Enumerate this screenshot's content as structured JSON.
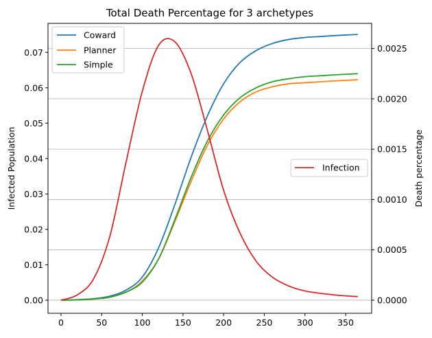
{
  "chart_data": {
    "type": "line",
    "title": "Total Death Percentage for 3 archetypes",
    "xlabel": "",
    "ylabel_left": "Infected Population",
    "ylabel_right": "Death percentage",
    "xlim": [
      -16,
      382
    ],
    "ylim_left": [
      -0.0037,
      0.0782
    ],
    "ylim_right": [
      -0.00013,
      0.00275
    ],
    "x_ticks": [
      0,
      50,
      100,
      150,
      200,
      250,
      300,
      350
    ],
    "y_left_ticks": [
      0.0,
      0.01,
      0.02,
      0.03,
      0.04,
      0.05,
      0.06,
      0.07
    ],
    "y_left_tick_labels": [
      "0.00",
      "0.01",
      "0.02",
      "0.03",
      "0.04",
      "0.05",
      "0.06",
      "0.07"
    ],
    "y_right_ticks": [
      0.0,
      0.0005,
      0.001,
      0.0015,
      0.002,
      0.0025
    ],
    "y_right_tick_labels": [
      "0.0000",
      "0.0005",
      "0.0010",
      "0.0015",
      "0.0020",
      "0.0025"
    ],
    "grid": "horizontal lines at right-axis ticks",
    "legend_left": {
      "placement": "top-left",
      "entries": [
        "Coward",
        "Planner",
        "Simple"
      ]
    },
    "legend_right": {
      "placement": "center-right",
      "entries": [
        "Infection"
      ]
    },
    "x": [
      0,
      20,
      40,
      60,
      80,
      100,
      120,
      140,
      160,
      180,
      200,
      220,
      240,
      260,
      280,
      300,
      320,
      340,
      365
    ],
    "series": [
      {
        "name": "Coward",
        "axis": "right",
        "color": "#1f77b4",
        "values": [
          0.0,
          5e-06,
          1.5e-05,
          4e-05,
          0.0001,
          0.00023,
          0.00052,
          0.00095,
          0.00142,
          0.00183,
          0.00215,
          0.00236,
          0.00248,
          0.00255,
          0.00259,
          0.00261,
          0.00262,
          0.00263,
          0.00264
        ]
      },
      {
        "name": "Planner",
        "axis": "right",
        "color": "#ff7f0e",
        "values": [
          0.0,
          3e-06,
          1.2e-05,
          3e-05,
          8e-05,
          0.00019,
          0.00041,
          0.00078,
          0.00118,
          0.00154,
          0.0018,
          0.00197,
          0.00207,
          0.00212,
          0.00215,
          0.00216,
          0.00217,
          0.00218,
          0.00219
        ]
      },
      {
        "name": "Simple",
        "axis": "right",
        "color": "#2ca02c",
        "values": [
          0.0,
          3e-06,
          1.2e-05,
          3e-05,
          8e-05,
          0.00018,
          0.00041,
          0.0008,
          0.00122,
          0.00158,
          0.00184,
          0.00201,
          0.00211,
          0.00217,
          0.0022,
          0.00222,
          0.00223,
          0.00224,
          0.00225
        ]
      },
      {
        "name": "Infection",
        "axis": "left",
        "color": "#d62728",
        "values": [
          0.0,
          0.0015,
          0.006,
          0.018,
          0.039,
          0.059,
          0.072,
          0.073,
          0.064,
          0.048,
          0.031,
          0.019,
          0.011,
          0.0065,
          0.004,
          0.0026,
          0.0019,
          0.0014,
          0.001
        ]
      }
    ]
  }
}
